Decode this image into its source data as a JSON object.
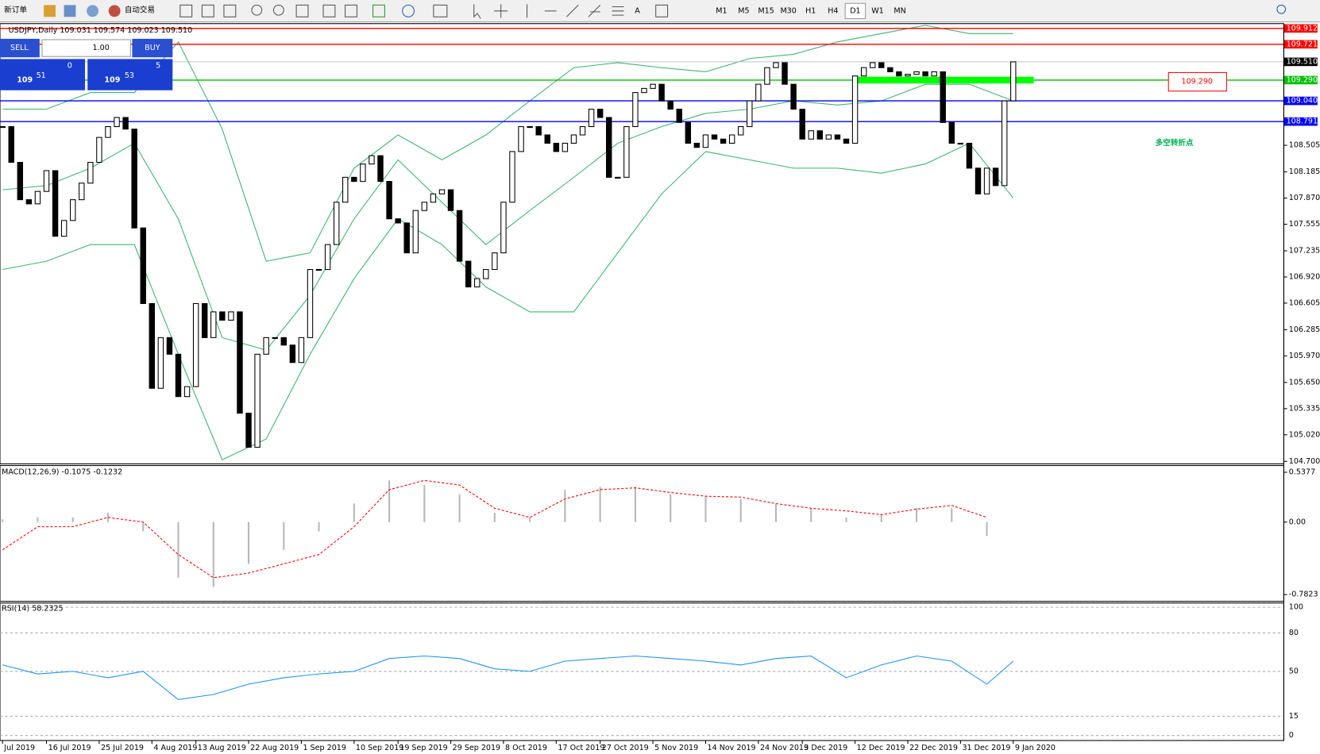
{
  "toolbar": {
    "new_order": "新订单",
    "auto_trade": "自动交易",
    "timeframes": [
      "M1",
      "M5",
      "M15",
      "M30",
      "H1",
      "H4",
      "D1",
      "W1",
      "MN"
    ],
    "active_timeframe": "D1"
  },
  "trade_panel": {
    "sell": "SELL",
    "buy": "BUY",
    "lots": "1.00",
    "bid_big": "109",
    "bid": "51",
    "bid_sup": "0",
    "ask_big": "109",
    "ask": "53",
    "ask_sup": "5"
  },
  "chart_data": [
    {
      "type": "candlestick",
      "title": "USDJPY,Daily  109.031 109.574 109.023 109.510",
      "categories": [
        "Jul 2019",
        null,
        null,
        null,
        null,
        "16 Jul 2019",
        null,
        null,
        null,
        null,
        null,
        "25 Jul 2019",
        null,
        null,
        null,
        null,
        null,
        "4 Aug 2019",
        null,
        null,
        null,
        null,
        "13 Aug 2019",
        null,
        null,
        null,
        null,
        null,
        "22 Aug 2019",
        null,
        null,
        null,
        null,
        null,
        "1 Sep 2019",
        null,
        null,
        null,
        null,
        null,
        "10 Sep 2019",
        null,
        null,
        null,
        null,
        "19 Sep 2019",
        null,
        null,
        null,
        null,
        null,
        "29 Sep 2019",
        null,
        null,
        null,
        null,
        null,
        "8 Oct 2019",
        null,
        null,
        null,
        null,
        null,
        "17 Oct 2019",
        null,
        null,
        null,
        null,
        "27 Oct 2019",
        null,
        null,
        null,
        null,
        null,
        "5 Nov 2019",
        null,
        null,
        null,
        null,
        null,
        "14 Nov 2019",
        null,
        null,
        null,
        null,
        null,
        "24 Nov 2019",
        null,
        null,
        null,
        null,
        "3 Dec 2019",
        null,
        null,
        null,
        null,
        null,
        "12 Dec 2019",
        null,
        null,
        null,
        null,
        null,
        "22 Dec 2019",
        null,
        null,
        null,
        null,
        null,
        "31 Dec 2019",
        null,
        null,
        null,
        null,
        null,
        "9 Jan 2020"
      ],
      "close": [
        108.73,
        108.3,
        107.85,
        107.8,
        107.95,
        108.2,
        107.41,
        107.6,
        107.85,
        108.05,
        108.3,
        108.6,
        108.73,
        108.84,
        108.7,
        107.51,
        106.6,
        105.58,
        106.19,
        105.99,
        105.48,
        105.6,
        106.6,
        106.19,
        106.5,
        106.4,
        106.5,
        105.28,
        104.87,
        105.99,
        106.19,
        106.19,
        106.1,
        105.89,
        106.19,
        107.01,
        107.01,
        107.31,
        107.82,
        108.12,
        108.07,
        108.28,
        108.38,
        108.07,
        107.62,
        107.57,
        107.21,
        107.72,
        107.82,
        107.92,
        107.97,
        107.72,
        107.11,
        106.8,
        106.9,
        107.01,
        107.21,
        107.82,
        108.43,
        108.73,
        108.73,
        108.63,
        108.53,
        108.43,
        108.53,
        108.63,
        108.73,
        108.94,
        108.84,
        108.12,
        108.12,
        108.73,
        109.14,
        109.19,
        109.24,
        109.04,
        108.94,
        108.78,
        108.53,
        108.48,
        108.63,
        108.58,
        108.53,
        108.63,
        108.73,
        109.04,
        109.24,
        109.44,
        109.5,
        109.24,
        108.94,
        108.58,
        108.68,
        108.58,
        108.63,
        108.58,
        108.53,
        109.34,
        109.44,
        109.5,
        109.44,
        109.39,
        109.34,
        109.36,
        109.39,
        109.34,
        109.39,
        108.78,
        108.53,
        108.53,
        108.23,
        107.92,
        108.23,
        108.02,
        109.04,
        109.51
      ],
      "bands": {
        "color": "#3cb371",
        "x": [
          0,
          5,
          10,
          15,
          20,
          25,
          30,
          35,
          40,
          45,
          50,
          55,
          60,
          65,
          70,
          75,
          80,
          85,
          90,
          95,
          100,
          105,
          110,
          115
        ],
        "upper": [
          108.94,
          108.94,
          109.14,
          109.14,
          109.75,
          108.7,
          107.11,
          107.21,
          108.23,
          108.63,
          108.33,
          108.63,
          109.04,
          109.44,
          109.5,
          109.44,
          109.39,
          109.55,
          109.6,
          109.75,
          109.85,
          109.95,
          109.85,
          109.85
        ],
        "middle": [
          107.97,
          108.02,
          108.23,
          108.53,
          107.62,
          106.19,
          106.04,
          106.7,
          107.62,
          108.33,
          107.82,
          107.31,
          107.72,
          108.12,
          108.53,
          108.73,
          108.89,
          108.94,
          109.04,
          108.99,
          109.04,
          109.24,
          109.24,
          109.04
        ],
        "lower": [
          107.01,
          107.11,
          107.31,
          107.31,
          105.99,
          104.72,
          104.97,
          105.99,
          106.9,
          107.62,
          107.31,
          106.8,
          106.5,
          106.5,
          107.21,
          107.92,
          108.43,
          108.33,
          108.23,
          108.23,
          108.17,
          108.28,
          108.53,
          107.87
        ]
      },
      "ylim": [
        104.67,
        109.97
      ],
      "yticks": [
        {
          "value": 104.7,
          "label": "104.700"
        },
        {
          "value": 105.02,
          "label": "105.020"
        },
        105.335,
        {
          "value": 105.65,
          "label": "105.650"
        },
        {
          "value": 105.97,
          "label": "105.970"
        },
        106.285,
        106.605,
        {
          "value": 106.92,
          "label": "106.920"
        },
        107.235,
        107.555,
        {
          "value": 107.87,
          "label": "107.870"
        },
        108.185,
        108.505
      ],
      "levels": [
        {
          "value": 109.912,
          "color": "#ff0000"
        },
        {
          "value": 109.721,
          "color": "#ff0000"
        },
        {
          "value": 109.29,
          "label": "109.290",
          "color": "#00c000"
        },
        {
          "value": 109.04,
          "label": "109.040",
          "color": "#0000ff"
        },
        {
          "value": 108.791,
          "color": "#0000ff"
        }
      ],
      "bid": {
        "value": 109.51,
        "label": "109.510"
      },
      "annotation": "多空转折点"
    },
    {
      "type": "macd",
      "title": "MACD(12,26,9) -0.1075 -0.1232",
      "x": [
        0,
        4,
        8,
        12,
        16,
        20,
        24,
        28,
        32,
        36,
        40,
        44,
        48,
        52,
        56,
        60,
        64,
        68,
        72,
        76,
        80,
        84,
        88,
        92,
        96,
        100,
        104,
        108,
        112
      ],
      "hist": [
        0.03,
        0.05,
        0.05,
        0.1,
        -0.1,
        -0.6,
        -0.7,
        -0.45,
        -0.3,
        -0.1,
        0.2,
        0.45,
        0.4,
        0.3,
        0.1,
        0.05,
        0.35,
        0.38,
        0.38,
        0.3,
        0.28,
        0.25,
        0.2,
        0.15,
        0.05,
        0.08,
        0.15,
        0.15,
        -0.15
      ],
      "signal": [
        -0.3,
        -0.05,
        -0.05,
        0.05,
        0,
        -0.35,
        -0.6,
        -0.55,
        -0.45,
        -0.35,
        -0.05,
        0.35,
        0.45,
        0.4,
        0.15,
        0.05,
        0.25,
        0.35,
        0.37,
        0.32,
        0.28,
        0.27,
        0.2,
        0.15,
        0.12,
        0.08,
        0.14,
        0.18,
        0.05
      ],
      "hist_color": "#b8b8b8",
      "signal_color": "#ff0000",
      "ylim": [
        -0.855,
        0.61
      ],
      "yticks": [
        -0.7823,
        {
          "value": 0,
          "label": "0.00"
        },
        0.5377
      ]
    },
    {
      "type": "rsi",
      "title": "RSI(14) 58.2325",
      "x": [
        0,
        4,
        8,
        12,
        16,
        20,
        24,
        28,
        32,
        36,
        40,
        44,
        48,
        52,
        56,
        60,
        64,
        68,
        72,
        76,
        80,
        84,
        88,
        92,
        96,
        100,
        104,
        108,
        112,
        115
      ],
      "values": [
        55,
        48,
        50,
        45,
        50,
        28,
        32,
        40,
        45,
        48,
        50,
        60,
        62,
        60,
        52,
        50,
        58,
        60,
        62,
        60,
        58,
        55,
        60,
        62,
        45,
        55,
        62,
        58,
        40,
        58
      ],
      "color": "#1e90ff",
      "ylim": [
        -3.9,
        103.3
      ],
      "yticks": [
        0,
        15,
        50,
        80,
        100
      ]
    }
  ]
}
